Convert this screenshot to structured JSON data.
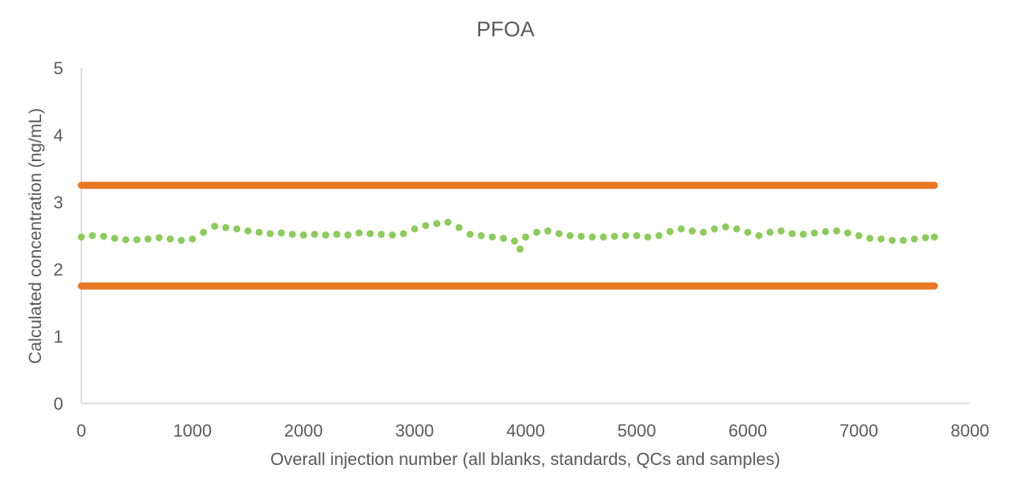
{
  "chart_data": {
    "type": "scatter",
    "title": "PFOA",
    "xlabel": "Overall injection number (all blanks, standards, QCs and samples)",
    "ylabel": "Calculated concentration (ng/mL)",
    "xlim": [
      0,
      8000
    ],
    "ylim": [
      0,
      5
    ],
    "x_ticks": [
      "0",
      "1000",
      "2000",
      "3000",
      "4000",
      "5000",
      "6000",
      "7000",
      "8000"
    ],
    "y_ticks": [
      "0",
      "1",
      "2",
      "3",
      "4",
      "5"
    ],
    "grid": false,
    "legend": "none",
    "colors": {
      "data": "#8ccc5a",
      "limits": "#e87722",
      "axis": "#d0d0d0",
      "text": "#595959"
    },
    "series": [
      {
        "style": "points",
        "x": [
          0,
          100,
          200,
          300,
          400,
          500,
          600,
          700,
          800,
          900,
          1000,
          1100,
          1200,
          1300,
          1400,
          1500,
          1600,
          1700,
          1800,
          1900,
          2000,
          2100,
          2200,
          2300,
          2400,
          2500,
          2600,
          2700,
          2800,
          2900,
          3000,
          3100,
          3200,
          3300,
          3400,
          3500,
          3600,
          3700,
          3800,
          3900,
          3950,
          4000,
          4100,
          4200,
          4300,
          4400,
          4500,
          4600,
          4700,
          4800,
          4900,
          5000,
          5100,
          5200,
          5300,
          5400,
          5500,
          5600,
          5700,
          5800,
          5900,
          6000,
          6100,
          6200,
          6300,
          6400,
          6500,
          6600,
          6700,
          6800,
          6900,
          7000,
          7100,
          7200,
          7300,
          7400,
          7500,
          7600,
          7680
        ],
        "y": [
          2.48,
          2.5,
          2.49,
          2.46,
          2.44,
          2.44,
          2.45,
          2.47,
          2.45,
          2.43,
          2.45,
          2.55,
          2.64,
          2.62,
          2.6,
          2.57,
          2.55,
          2.53,
          2.54,
          2.52,
          2.51,
          2.52,
          2.51,
          2.52,
          2.51,
          2.54,
          2.53,
          2.52,
          2.51,
          2.53,
          2.6,
          2.65,
          2.68,
          2.7,
          2.62,
          2.52,
          2.5,
          2.48,
          2.46,
          2.42,
          2.3,
          2.48,
          2.55,
          2.57,
          2.53,
          2.5,
          2.49,
          2.48,
          2.48,
          2.49,
          2.5,
          2.5,
          2.48,
          2.5,
          2.56,
          2.6,
          2.57,
          2.55,
          2.6,
          2.63,
          2.6,
          2.55,
          2.5,
          2.55,
          2.57,
          2.53,
          2.52,
          2.54,
          2.56,
          2.57,
          2.54,
          2.5,
          2.46,
          2.45,
          2.43,
          2.43,
          2.45,
          2.47,
          2.48
        ]
      },
      {
        "style": "line",
        "x": [
          0,
          7680
        ],
        "y": [
          3.25,
          3.25
        ]
      },
      {
        "style": "line",
        "x": [
          0,
          7680
        ],
        "y": [
          1.75,
          1.75
        ]
      }
    ]
  }
}
